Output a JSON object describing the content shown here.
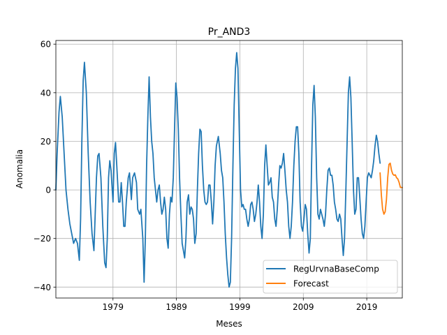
{
  "chart_data": {
    "type": "line",
    "title": "Pr_AND3",
    "xlabel": "Meses",
    "ylabel": "Anomalia",
    "xlim": [
      1970.0,
      2024.6
    ],
    "ylim": [
      -44.5,
      61.5
    ],
    "x_ticks": [
      {
        "x": 1979,
        "label": "1979"
      },
      {
        "x": 1989,
        "label": "1989"
      },
      {
        "x": 1999,
        "label": "1999"
      },
      {
        "x": 2009,
        "label": "2009"
      },
      {
        "x": 2019,
        "label": "2019"
      }
    ],
    "y_ticks": [
      {
        "y": -40,
        "label": "−40"
      },
      {
        "y": -20,
        "label": "−20"
      },
      {
        "y": 0,
        "label": "0"
      },
      {
        "y": 20,
        "label": "20"
      },
      {
        "y": 40,
        "label": "40"
      },
      {
        "y": 60,
        "label": "60"
      }
    ],
    "grid": true,
    "legend_position": "lower-right",
    "series": [
      {
        "name": "RegUrvnaBaseComp",
        "color": "#1f77b4",
        "points": [
          [
            1970.0,
            0
          ],
          [
            1970.2,
            15
          ],
          [
            1970.5,
            32
          ],
          [
            1970.7,
            38.5
          ],
          [
            1971.0,
            30
          ],
          [
            1971.3,
            15
          ],
          [
            1971.6,
            0
          ],
          [
            1971.9,
            -8
          ],
          [
            1972.2,
            -14
          ],
          [
            1972.5,
            -18
          ],
          [
            1972.8,
            -22
          ],
          [
            1973.1,
            -20
          ],
          [
            1973.4,
            -22
          ],
          [
            1973.7,
            -29
          ],
          [
            1973.9,
            -12
          ],
          [
            1974.1,
            20
          ],
          [
            1974.3,
            45
          ],
          [
            1974.5,
            52.5
          ],
          [
            1974.8,
            40
          ],
          [
            1975.1,
            15
          ],
          [
            1975.4,
            -5
          ],
          [
            1975.7,
            -18
          ],
          [
            1976.0,
            -25
          ],
          [
            1976.2,
            -10
          ],
          [
            1976.4,
            5
          ],
          [
            1976.6,
            14
          ],
          [
            1976.8,
            15
          ],
          [
            1977.1,
            5
          ],
          [
            1977.4,
            -15
          ],
          [
            1977.7,
            -30
          ],
          [
            1977.9,
            -32
          ],
          [
            1978.1,
            -20
          ],
          [
            1978.3,
            5
          ],
          [
            1978.5,
            12
          ],
          [
            1978.7,
            8
          ],
          [
            1979.0,
            -5
          ],
          [
            1979.2,
            15
          ],
          [
            1979.4,
            19.5
          ],
          [
            1979.6,
            10
          ],
          [
            1979.9,
            -5
          ],
          [
            1980.1,
            -5
          ],
          [
            1980.3,
            3
          ],
          [
            1980.5,
            -5
          ],
          [
            1980.7,
            -15
          ],
          [
            1980.9,
            -15
          ],
          [
            1981.1,
            -5
          ],
          [
            1981.4,
            5
          ],
          [
            1981.6,
            7
          ],
          [
            1981.9,
            -4
          ],
          [
            1982.1,
            5
          ],
          [
            1982.4,
            7
          ],
          [
            1982.7,
            3
          ],
          [
            1982.9,
            -8
          ],
          [
            1983.2,
            -10
          ],
          [
            1983.4,
            -8
          ],
          [
            1983.7,
            -20
          ],
          [
            1983.9,
            -38
          ],
          [
            1984.1,
            -20
          ],
          [
            1984.3,
            10
          ],
          [
            1984.5,
            30
          ],
          [
            1984.7,
            46.5
          ],
          [
            1984.9,
            30
          ],
          [
            1985.1,
            20
          ],
          [
            1985.3,
            15
          ],
          [
            1985.5,
            5
          ],
          [
            1985.7,
            0
          ],
          [
            1985.9,
            -5
          ],
          [
            1986.1,
            0
          ],
          [
            1986.3,
            2
          ],
          [
            1986.5,
            -5
          ],
          [
            1986.7,
            -10
          ],
          [
            1986.9,
            -8
          ],
          [
            1987.1,
            -3
          ],
          [
            1987.3,
            -8
          ],
          [
            1987.5,
            -20
          ],
          [
            1987.7,
            -24
          ],
          [
            1987.9,
            -10
          ],
          [
            1988.1,
            -3
          ],
          [
            1988.3,
            -5
          ],
          [
            1988.5,
            5
          ],
          [
            1988.7,
            25
          ],
          [
            1988.9,
            44
          ],
          [
            1989.1,
            38
          ],
          [
            1989.3,
            25
          ],
          [
            1989.5,
            5
          ],
          [
            1989.7,
            -10
          ],
          [
            1989.9,
            -22
          ],
          [
            1990.1,
            -25
          ],
          [
            1990.3,
            -28
          ],
          [
            1990.5,
            -20
          ],
          [
            1990.7,
            -5
          ],
          [
            1990.9,
            -2
          ],
          [
            1991.1,
            -10
          ],
          [
            1991.3,
            -7
          ],
          [
            1991.5,
            -8
          ],
          [
            1991.7,
            -12
          ],
          [
            1991.9,
            -22
          ],
          [
            1992.1,
            -18
          ],
          [
            1992.3,
            0
          ],
          [
            1992.5,
            15
          ],
          [
            1992.7,
            25
          ],
          [
            1992.9,
            24
          ],
          [
            1993.1,
            10
          ],
          [
            1993.3,
            0
          ],
          [
            1993.5,
            -5
          ],
          [
            1993.7,
            -6
          ],
          [
            1993.9,
            -5
          ],
          [
            1994.1,
            2
          ],
          [
            1994.3,
            2
          ],
          [
            1994.5,
            -5
          ],
          [
            1994.7,
            -14
          ],
          [
            1994.9,
            -5
          ],
          [
            1995.1,
            10
          ],
          [
            1995.3,
            18
          ],
          [
            1995.6,
            22
          ],
          [
            1995.9,
            15
          ],
          [
            1996.1,
            8
          ],
          [
            1996.3,
            5
          ],
          [
            1996.5,
            -5
          ],
          [
            1996.7,
            -18
          ],
          [
            1996.9,
            -28
          ],
          [
            1997.1,
            -35
          ],
          [
            1997.3,
            -40
          ],
          [
            1997.5,
            -38
          ],
          [
            1997.7,
            -20
          ],
          [
            1997.9,
            10
          ],
          [
            1998.1,
            35
          ],
          [
            1998.3,
            50
          ],
          [
            1998.5,
            56.5
          ],
          [
            1998.7,
            50
          ],
          [
            1998.9,
            25
          ],
          [
            1999.1,
            0
          ],
          [
            1999.3,
            -7
          ],
          [
            1999.5,
            -6
          ],
          [
            1999.7,
            -8
          ],
          [
            1999.9,
            -8
          ],
          [
            2000.1,
            -12
          ],
          [
            2000.3,
            -15
          ],
          [
            2000.5,
            -12
          ],
          [
            2000.7,
            -6
          ],
          [
            2000.9,
            -5
          ],
          [
            2001.1,
            -8
          ],
          [
            2001.3,
            -13
          ],
          [
            2001.5,
            -10
          ],
          [
            2001.7,
            -5
          ],
          [
            2001.9,
            2
          ],
          [
            2002.1,
            -5
          ],
          [
            2002.3,
            -15
          ],
          [
            2002.5,
            -20
          ],
          [
            2002.7,
            -10
          ],
          [
            2002.9,
            10
          ],
          [
            2003.1,
            18.5
          ],
          [
            2003.3,
            10
          ],
          [
            2003.5,
            2
          ],
          [
            2003.7,
            3
          ],
          [
            2003.9,
            5
          ],
          [
            2004.1,
            -3
          ],
          [
            2004.3,
            -5
          ],
          [
            2004.5,
            -12
          ],
          [
            2004.7,
            -15
          ],
          [
            2004.9,
            -8
          ],
          [
            2005.1,
            2
          ],
          [
            2005.3,
            10
          ],
          [
            2005.5,
            9
          ],
          [
            2005.7,
            11
          ],
          [
            2005.9,
            15
          ],
          [
            2006.1,
            8
          ],
          [
            2006.3,
            0
          ],
          [
            2006.5,
            -5
          ],
          [
            2006.7,
            -15
          ],
          [
            2006.9,
            -20
          ],
          [
            2007.1,
            -15
          ],
          [
            2007.3,
            -5
          ],
          [
            2007.5,
            10
          ],
          [
            2007.7,
            20
          ],
          [
            2007.9,
            26
          ],
          [
            2008.1,
            26
          ],
          [
            2008.3,
            15
          ],
          [
            2008.5,
            -5
          ],
          [
            2008.7,
            -15
          ],
          [
            2008.9,
            -17
          ],
          [
            2009.1,
            -12
          ],
          [
            2009.3,
            -6
          ],
          [
            2009.5,
            -8
          ],
          [
            2009.7,
            -18
          ],
          [
            2009.9,
            -26
          ],
          [
            2010.1,
            -20
          ],
          [
            2010.3,
            10
          ],
          [
            2010.5,
            35
          ],
          [
            2010.7,
            43
          ],
          [
            2010.9,
            30
          ],
          [
            2011.1,
            5
          ],
          [
            2011.3,
            -10
          ],
          [
            2011.5,
            -12
          ],
          [
            2011.7,
            -8
          ],
          [
            2011.9,
            -10
          ],
          [
            2012.1,
            -12
          ],
          [
            2012.3,
            -15
          ],
          [
            2012.5,
            -10
          ],
          [
            2012.7,
            0
          ],
          [
            2012.9,
            8
          ],
          [
            2013.1,
            9
          ],
          [
            2013.3,
            6
          ],
          [
            2013.5,
            6
          ],
          [
            2013.7,
            2
          ],
          [
            2013.9,
            -5
          ],
          [
            2014.1,
            -8
          ],
          [
            2014.3,
            -12
          ],
          [
            2014.5,
            -13
          ],
          [
            2014.7,
            -10
          ],
          [
            2014.9,
            -12
          ],
          [
            2015.1,
            -20
          ],
          [
            2015.3,
            -27
          ],
          [
            2015.5,
            -20
          ],
          [
            2015.7,
            0
          ],
          [
            2015.9,
            20
          ],
          [
            2016.1,
            40
          ],
          [
            2016.3,
            46.5
          ],
          [
            2016.5,
            38
          ],
          [
            2016.7,
            20
          ],
          [
            2016.9,
            0
          ],
          [
            2017.1,
            -10
          ],
          [
            2017.3,
            -8
          ],
          [
            2017.5,
            5
          ],
          [
            2017.7,
            5
          ],
          [
            2017.9,
            -3
          ],
          [
            2018.1,
            -12
          ],
          [
            2018.3,
            -18
          ],
          [
            2018.5,
            -20
          ],
          [
            2018.7,
            -15
          ],
          [
            2018.9,
            -5
          ],
          [
            2019.1,
            5
          ],
          [
            2019.3,
            7
          ],
          [
            2019.5,
            6
          ],
          [
            2019.7,
            5
          ],
          [
            2019.9,
            8
          ],
          [
            2020.1,
            12
          ],
          [
            2020.3,
            18
          ],
          [
            2020.5,
            22.5
          ],
          [
            2020.7,
            20
          ],
          [
            2020.9,
            15
          ],
          [
            2021.1,
            11
          ]
        ]
      },
      {
        "name": "Forecast",
        "color": "#ff7f0e",
        "points": [
          [
            2021.1,
            7
          ],
          [
            2021.3,
            -2
          ],
          [
            2021.5,
            -8
          ],
          [
            2021.7,
            -10
          ],
          [
            2021.9,
            -9
          ],
          [
            2022.1,
            -4
          ],
          [
            2022.3,
            5
          ],
          [
            2022.5,
            10.5
          ],
          [
            2022.7,
            11
          ],
          [
            2022.9,
            8
          ],
          [
            2023.1,
            6.5
          ],
          [
            2023.3,
            6
          ],
          [
            2023.5,
            6.2
          ],
          [
            2023.7,
            5
          ],
          [
            2023.9,
            4.5
          ],
          [
            2024.1,
            3
          ],
          [
            2024.3,
            1
          ],
          [
            2024.6,
            1
          ]
        ]
      }
    ]
  }
}
